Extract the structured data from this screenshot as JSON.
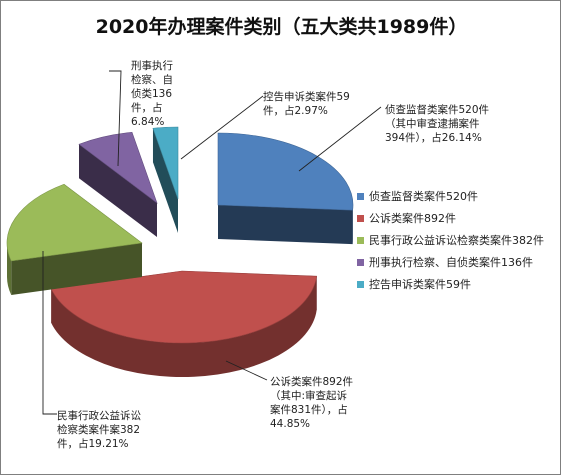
{
  "chart_data": {
    "type": "pie",
    "title": "2020年办理案件类别（五大类共1989件）",
    "total": 1989,
    "slices": [
      {
        "name": "侦查监督类案件520件",
        "value": 520,
        "percent": 26.14,
        "color": "#4f81bd",
        "label_lines": [
          "侦查监督类案件520件",
          "（其中审查逮捕案件",
          "394件），占26.14%"
        ]
      },
      {
        "name": "公诉类案件892件",
        "value": 892,
        "percent": 44.85,
        "color": "#c0504d",
        "label_lines": [
          "公诉类案件892件",
          "（其中:审查起诉",
          "案件831件），占",
          "44.85%"
        ]
      },
      {
        "name": "民事行政公益诉讼检察类案件382件",
        "value": 382,
        "percent": 19.21,
        "color": "#9bbb59",
        "label_lines": [
          "民事行政公益诉讼",
          "检察类案件案382",
          "件，占19.21%"
        ]
      },
      {
        "name": "刑事执行检察、自侦类案件136件",
        "value": 136,
        "percent": 6.84,
        "color": "#8064a2",
        "label_lines": [
          "刑事执行",
          "检察、自",
          "侦类136",
          "件，占",
          "6.84%"
        ]
      },
      {
        "name": "控告申诉类案件59件",
        "value": 59,
        "percent": 2.97,
        "color": "#4bacc6",
        "label_lines": [
          "控告申诉类案件59",
          "件，占2.97%"
        ]
      }
    ],
    "legend_position": "right"
  }
}
